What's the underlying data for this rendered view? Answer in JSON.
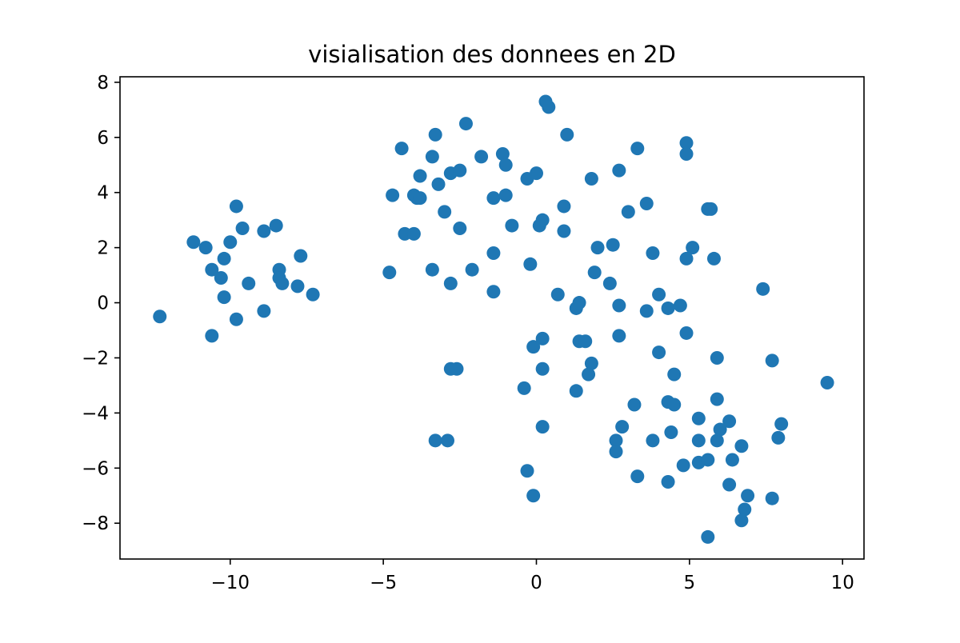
{
  "chart_data": {
    "type": "scatter",
    "title": "visialisation des donnees en 2D",
    "xlabel": "",
    "ylabel": "",
    "xlim": [
      -13.6,
      10.7
    ],
    "ylim": [
      -9.3,
      8.2
    ],
    "xticks": [
      -10,
      -5,
      0,
      5,
      10
    ],
    "xtick_labels": [
      "−10",
      "−5",
      "0",
      "5",
      "10"
    ],
    "yticks": [
      -8,
      -6,
      -4,
      -2,
      0,
      2,
      4,
      6,
      8
    ],
    "ytick_labels": [
      "−8",
      "−6",
      "−4",
      "−2",
      "0",
      "2",
      "4",
      "6",
      "8"
    ],
    "grid": false,
    "marker_color": "#1f77b4",
    "points": [
      {
        "x": -12.3,
        "y": -0.5
      },
      {
        "x": -11.2,
        "y": 2.2
      },
      {
        "x": -10.8,
        "y": 2.0
      },
      {
        "x": -10.6,
        "y": 1.2
      },
      {
        "x": -10.6,
        "y": -1.2
      },
      {
        "x": -10.3,
        "y": 0.9
      },
      {
        "x": -10.2,
        "y": 1.6
      },
      {
        "x": -10.2,
        "y": 0.2
      },
      {
        "x": -10.0,
        "y": 2.2
      },
      {
        "x": -9.8,
        "y": 3.5
      },
      {
        "x": -9.8,
        "y": -0.6
      },
      {
        "x": -9.6,
        "y": 2.7
      },
      {
        "x": -9.4,
        "y": 0.7
      },
      {
        "x": -8.9,
        "y": 2.6
      },
      {
        "x": -8.9,
        "y": -0.3
      },
      {
        "x": -8.5,
        "y": 2.8
      },
      {
        "x": -8.4,
        "y": 1.2
      },
      {
        "x": -8.4,
        "y": 0.9
      },
      {
        "x": -8.3,
        "y": 0.7
      },
      {
        "x": -7.8,
        "y": 0.6
      },
      {
        "x": -7.7,
        "y": 1.7
      },
      {
        "x": -7.3,
        "y": 0.3
      },
      {
        "x": -4.7,
        "y": 3.9
      },
      {
        "x": -4.8,
        "y": 1.1
      },
      {
        "x": -4.4,
        "y": 5.6
      },
      {
        "x": -4.3,
        "y": 2.5
      },
      {
        "x": -4.0,
        "y": 2.5
      },
      {
        "x": -4.0,
        "y": 3.9
      },
      {
        "x": -3.9,
        "y": 3.8
      },
      {
        "x": -3.8,
        "y": 4.6
      },
      {
        "x": -3.8,
        "y": 3.8
      },
      {
        "x": -3.4,
        "y": 5.3
      },
      {
        "x": -3.3,
        "y": 6.1
      },
      {
        "x": -3.4,
        "y": 1.2
      },
      {
        "x": -3.2,
        "y": 4.3
      },
      {
        "x": -3.0,
        "y": 3.3
      },
      {
        "x": -2.8,
        "y": 4.7
      },
      {
        "x": -2.8,
        "y": 0.7
      },
      {
        "x": -2.5,
        "y": 4.8
      },
      {
        "x": -2.5,
        "y": 2.7
      },
      {
        "x": -2.3,
        "y": 6.5
      },
      {
        "x": -2.1,
        "y": 1.2
      },
      {
        "x": -1.8,
        "y": 5.3
      },
      {
        "x": -1.4,
        "y": 3.8
      },
      {
        "x": -1.4,
        "y": 1.8
      },
      {
        "x": -1.4,
        "y": 0.4
      },
      {
        "x": -1.1,
        "y": 5.4
      },
      {
        "x": -1.0,
        "y": 5.0
      },
      {
        "x": -1.0,
        "y": 3.9
      },
      {
        "x": -0.8,
        "y": 2.8
      },
      {
        "x": -0.3,
        "y": 4.5
      },
      {
        "x": 0.0,
        "y": 4.7
      },
      {
        "x": -0.2,
        "y": 1.4
      },
      {
        "x": 0.1,
        "y": 2.8
      },
      {
        "x": 0.2,
        "y": 3.0
      },
      {
        "x": 0.3,
        "y": 7.3
      },
      {
        "x": 0.4,
        "y": 7.1
      },
      {
        "x": 0.9,
        "y": 3.5
      },
      {
        "x": 0.9,
        "y": 2.6
      },
      {
        "x": 1.0,
        "y": 6.1
      },
      {
        "x": 1.8,
        "y": 4.5
      },
      {
        "x": 2.0,
        "y": 2.0
      },
      {
        "x": 1.9,
        "y": 1.1
      },
      {
        "x": 2.5,
        "y": 2.1
      },
      {
        "x": 2.4,
        "y": 0.7
      },
      {
        "x": 2.7,
        "y": 4.8
      },
      {
        "x": 3.0,
        "y": 3.3
      },
      {
        "x": 3.3,
        "y": 5.6
      },
      {
        "x": 3.6,
        "y": 3.6
      },
      {
        "x": 3.8,
        "y": 1.8
      },
      {
        "x": 4.9,
        "y": 5.8
      },
      {
        "x": 4.9,
        "y": 5.4
      },
      {
        "x": 5.6,
        "y": 3.4
      },
      {
        "x": 5.7,
        "y": 3.4
      },
      {
        "x": 5.1,
        "y": 2.0
      },
      {
        "x": 4.9,
        "y": 1.6
      },
      {
        "x": 5.8,
        "y": 1.6
      },
      {
        "x": 7.4,
        "y": 0.5
      },
      {
        "x": 0.7,
        "y": 0.3
      },
      {
        "x": 1.3,
        "y": -0.2
      },
      {
        "x": 1.4,
        "y": 0.0
      },
      {
        "x": 2.7,
        "y": -0.1
      },
      {
        "x": 3.6,
        "y": -0.3
      },
      {
        "x": 4.0,
        "y": 0.3
      },
      {
        "x": 4.3,
        "y": -0.2
      },
      {
        "x": 4.7,
        "y": -0.1
      },
      {
        "x": 4.9,
        "y": -1.1
      },
      {
        "x": -0.1,
        "y": -1.6
      },
      {
        "x": 0.2,
        "y": -1.3
      },
      {
        "x": 0.2,
        "y": -2.4
      },
      {
        "x": 1.4,
        "y": -1.4
      },
      {
        "x": 1.6,
        "y": -1.4
      },
      {
        "x": 1.8,
        "y": -2.2
      },
      {
        "x": 1.7,
        "y": -2.6
      },
      {
        "x": 2.7,
        "y": -1.2
      },
      {
        "x": 4.0,
        "y": -1.8
      },
      {
        "x": 4.5,
        "y": -2.6
      },
      {
        "x": 5.9,
        "y": -2.0
      },
      {
        "x": 7.7,
        "y": -2.1
      },
      {
        "x": 9.5,
        "y": -2.9
      },
      {
        "x": -2.8,
        "y": -2.4
      },
      {
        "x": -2.6,
        "y": -2.4
      },
      {
        "x": -0.4,
        "y": -3.1
      },
      {
        "x": 1.3,
        "y": -3.2
      },
      {
        "x": 0.2,
        "y": -4.5
      },
      {
        "x": 3.2,
        "y": -3.7
      },
      {
        "x": 4.3,
        "y": -3.6
      },
      {
        "x": 4.5,
        "y": -3.7
      },
      {
        "x": 5.3,
        "y": -4.2
      },
      {
        "x": 5.9,
        "y": -3.5
      },
      {
        "x": 6.3,
        "y": -4.3
      },
      {
        "x": 2.6,
        "y": -5.0
      },
      {
        "x": 2.8,
        "y": -4.5
      },
      {
        "x": 2.6,
        "y": -5.4
      },
      {
        "x": 3.8,
        "y": -5.0
      },
      {
        "x": 4.4,
        "y": -4.7
      },
      {
        "x": 5.3,
        "y": -5.0
      },
      {
        "x": 5.9,
        "y": -5.0
      },
      {
        "x": 6.0,
        "y": -4.6
      },
      {
        "x": 6.7,
        "y": -5.2
      },
      {
        "x": 8.0,
        "y": -4.4
      },
      {
        "x": 7.9,
        "y": -4.9
      },
      {
        "x": -3.3,
        "y": -5.0
      },
      {
        "x": -2.9,
        "y": -5.0
      },
      {
        "x": -0.3,
        "y": -6.1
      },
      {
        "x": -0.1,
        "y": -7.0
      },
      {
        "x": 3.3,
        "y": -6.3
      },
      {
        "x": 4.3,
        "y": -6.5
      },
      {
        "x": 4.8,
        "y": -5.9
      },
      {
        "x": 5.3,
        "y": -5.8
      },
      {
        "x": 5.6,
        "y": -5.7
      },
      {
        "x": 6.4,
        "y": -5.7
      },
      {
        "x": 6.3,
        "y": -6.6
      },
      {
        "x": 6.9,
        "y": -7.0
      },
      {
        "x": 7.7,
        "y": -7.1
      },
      {
        "x": 6.8,
        "y": -7.5
      },
      {
        "x": 6.7,
        "y": -7.9
      },
      {
        "x": 5.6,
        "y": -8.5
      }
    ]
  }
}
